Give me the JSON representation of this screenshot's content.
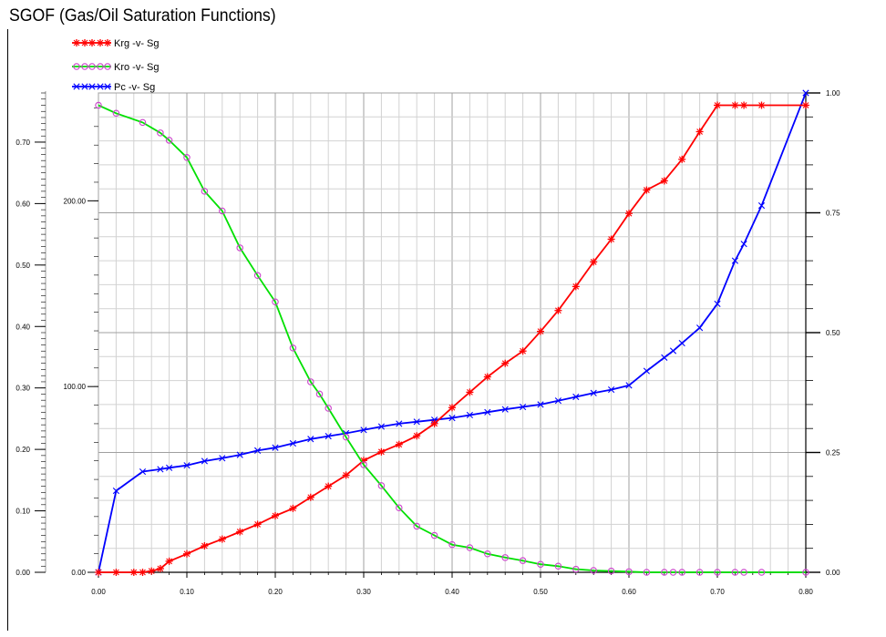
{
  "chart_data": {
    "type": "line",
    "title": "SGOF (Gas/Oil Saturation Functions)",
    "xlim": [
      0.0,
      0.8
    ],
    "x_ticks": [
      "0.00",
      "0.10",
      "0.20",
      "0.30",
      "0.40",
      "0.50",
      "0.60",
      "0.70",
      "0.80"
    ],
    "y_left_outer": {
      "range": [
        0.0,
        0.78
      ],
      "ticks": [
        "0.00",
        "0.10",
        "0.20",
        "0.30",
        "0.40",
        "0.50",
        "0.60",
        "0.70"
      ]
    },
    "y_left_inner": {
      "range": [
        0.0,
        200.0
      ],
      "ticks": [
        "0.00",
        "100.00",
        "200.00"
      ]
    },
    "y_right": {
      "range": [
        0.0,
        1.0
      ],
      "ticks": [
        "0.00",
        "0.25",
        "0.50",
        "0.75",
        "1.00"
      ]
    },
    "grid": true,
    "legend_position": "top-left",
    "series": [
      {
        "name": "Krg -v- Sg",
        "color": "#ff0000",
        "marker": "star",
        "axis": "left_outer",
        "points": [
          [
            0.0,
            0.0
          ],
          [
            0.02,
            0.0
          ],
          [
            0.04,
            0.0
          ],
          [
            0.05,
            0.0
          ],
          [
            0.06,
            0.002
          ],
          [
            0.07,
            0.006
          ],
          [
            0.08,
            0.018
          ],
          [
            0.1,
            0.03
          ],
          [
            0.12,
            0.043
          ],
          [
            0.14,
            0.054
          ],
          [
            0.16,
            0.066
          ],
          [
            0.18,
            0.078
          ],
          [
            0.2,
            0.092
          ],
          [
            0.22,
            0.104
          ],
          [
            0.24,
            0.122
          ],
          [
            0.26,
            0.14
          ],
          [
            0.28,
            0.158
          ],
          [
            0.3,
            0.182
          ],
          [
            0.32,
            0.196
          ],
          [
            0.34,
            0.208
          ],
          [
            0.36,
            0.222
          ],
          [
            0.38,
            0.242
          ],
          [
            0.4,
            0.268
          ],
          [
            0.42,
            0.293
          ],
          [
            0.44,
            0.318
          ],
          [
            0.46,
            0.34
          ],
          [
            0.48,
            0.36
          ],
          [
            0.5,
            0.392
          ],
          [
            0.52,
            0.426
          ],
          [
            0.54,
            0.465
          ],
          [
            0.56,
            0.505
          ],
          [
            0.58,
            0.542
          ],
          [
            0.6,
            0.584
          ],
          [
            0.62,
            0.622
          ],
          [
            0.64,
            0.637
          ],
          [
            0.66,
            0.672
          ],
          [
            0.68,
            0.717
          ],
          [
            0.7,
            0.76
          ],
          [
            0.72,
            0.76
          ],
          [
            0.73,
            0.76
          ],
          [
            0.75,
            0.76
          ],
          [
            0.8,
            0.76
          ]
        ]
      },
      {
        "name": "Kro -v- Sg",
        "color": "#00e000",
        "marker": "circle",
        "axis": "left_outer",
        "points": [
          [
            0.0,
            0.76
          ],
          [
            0.02,
            0.747
          ],
          [
            0.05,
            0.732
          ],
          [
            0.07,
            0.715
          ],
          [
            0.08,
            0.703
          ],
          [
            0.1,
            0.675
          ],
          [
            0.12,
            0.62
          ],
          [
            0.14,
            0.588
          ],
          [
            0.16,
            0.528
          ],
          [
            0.18,
            0.483
          ],
          [
            0.2,
            0.44
          ],
          [
            0.22,
            0.365
          ],
          [
            0.24,
            0.31
          ],
          [
            0.25,
            0.29
          ],
          [
            0.26,
            0.267
          ],
          [
            0.28,
            0.22
          ],
          [
            0.3,
            0.175
          ],
          [
            0.32,
            0.141
          ],
          [
            0.34,
            0.105
          ],
          [
            0.36,
            0.075
          ],
          [
            0.38,
            0.06
          ],
          [
            0.4,
            0.045
          ],
          [
            0.42,
            0.04
          ],
          [
            0.44,
            0.03
          ],
          [
            0.46,
            0.024
          ],
          [
            0.48,
            0.019
          ],
          [
            0.5,
            0.013
          ],
          [
            0.52,
            0.01
          ],
          [
            0.54,
            0.005
          ],
          [
            0.56,
            0.003
          ],
          [
            0.58,
            0.002
          ],
          [
            0.6,
            0.001
          ],
          [
            0.62,
            0.0
          ],
          [
            0.64,
            0.0
          ],
          [
            0.65,
            0.0
          ],
          [
            0.66,
            0.0
          ],
          [
            0.68,
            0.0
          ],
          [
            0.7,
            0.0
          ],
          [
            0.72,
            0.0
          ],
          [
            0.73,
            0.0
          ],
          [
            0.75,
            0.0
          ],
          [
            0.8,
            0.0
          ]
        ]
      },
      {
        "name": "Pc -v- Sg",
        "color": "#0000ff",
        "marker": "x",
        "axis": "right",
        "points": [
          [
            0.0,
            0.0
          ],
          [
            0.02,
            0.17
          ],
          [
            0.05,
            0.21
          ],
          [
            0.07,
            0.215
          ],
          [
            0.08,
            0.218
          ],
          [
            0.1,
            0.223
          ],
          [
            0.12,
            0.232
          ],
          [
            0.14,
            0.238
          ],
          [
            0.16,
            0.245
          ],
          [
            0.18,
            0.254
          ],
          [
            0.2,
            0.26
          ],
          [
            0.22,
            0.269
          ],
          [
            0.24,
            0.278
          ],
          [
            0.26,
            0.284
          ],
          [
            0.28,
            0.29
          ],
          [
            0.3,
            0.297
          ],
          [
            0.32,
            0.304
          ],
          [
            0.34,
            0.31
          ],
          [
            0.36,
            0.314
          ],
          [
            0.38,
            0.318
          ],
          [
            0.4,
            0.322
          ],
          [
            0.42,
            0.328
          ],
          [
            0.44,
            0.334
          ],
          [
            0.46,
            0.34
          ],
          [
            0.48,
            0.345
          ],
          [
            0.5,
            0.35
          ],
          [
            0.52,
            0.358
          ],
          [
            0.54,
            0.366
          ],
          [
            0.56,
            0.374
          ],
          [
            0.58,
            0.381
          ],
          [
            0.6,
            0.39
          ],
          [
            0.62,
            0.42
          ],
          [
            0.64,
            0.448
          ],
          [
            0.65,
            0.462
          ],
          [
            0.66,
            0.478
          ],
          [
            0.68,
            0.51
          ],
          [
            0.7,
            0.56
          ],
          [
            0.72,
            0.65
          ],
          [
            0.73,
            0.685
          ],
          [
            0.75,
            0.765
          ],
          [
            0.8,
            1.0
          ]
        ]
      }
    ]
  }
}
